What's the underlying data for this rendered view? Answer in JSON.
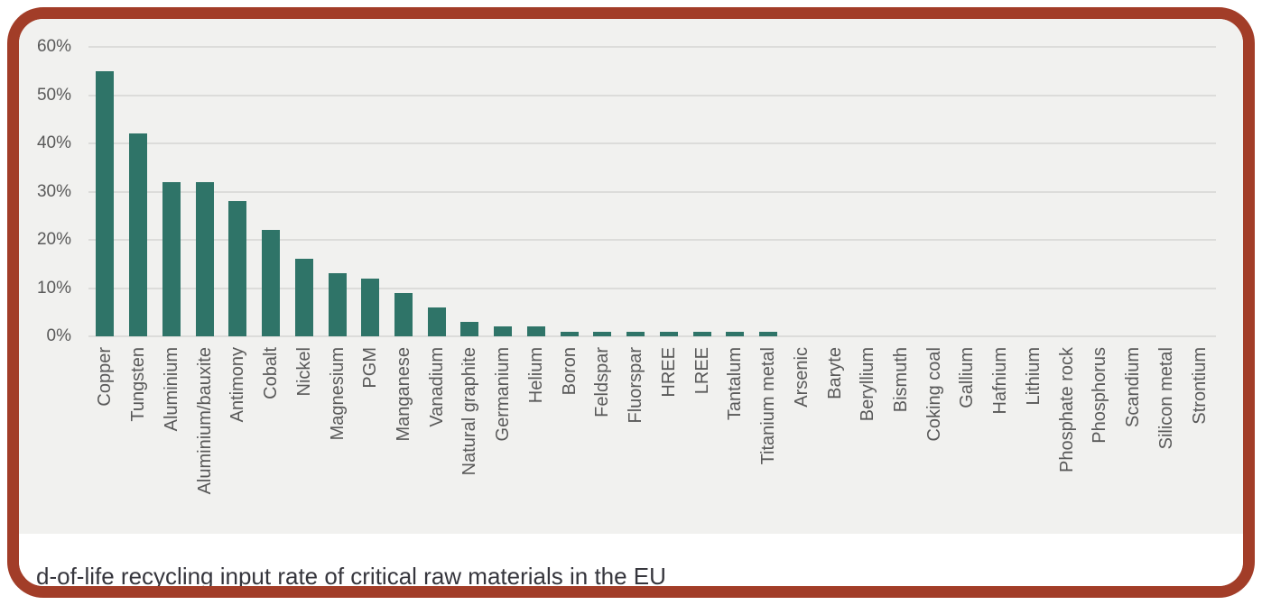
{
  "figure": {
    "caption": "d-of-life recycling input rate of critical raw materials in the EU"
  },
  "colors": {
    "frame-border": "#A23D28",
    "panel-bg": "#F1F1EF",
    "page-bg": "#FFFFFF",
    "bar": "#2F7468",
    "gridline": "#DCDCDA",
    "axis-text": "#595959",
    "caption-text": "#36363D"
  },
  "chart_data": {
    "type": "bar",
    "title": "",
    "xlabel": "",
    "ylabel": "",
    "value_unit": "percent",
    "ylim": [
      0,
      60
    ],
    "grid": true,
    "legend": false,
    "bar_color": "#2F7468",
    "y_ticks": [
      "0%",
      "10%",
      "20%",
      "30%",
      "40%",
      "50%",
      "60%"
    ],
    "categories": [
      "Copper",
      "Tungsten",
      "Aluminium",
      "Aluminium/bauxite",
      "Antimony",
      "Cobalt",
      "Nickel",
      "Magnesium",
      "PGM",
      "Manganese",
      "Vanadium",
      "Natural graphite",
      "Germanium",
      "Helium",
      "Boron",
      "Feldspar",
      "Fluorspar",
      "HREE",
      "LREE",
      "Tantalum",
      "Titanium metal",
      "Arsenic",
      "Baryte",
      "Beryllium",
      "Bismuth",
      "Coking coal",
      "Gallium",
      "Hafnium",
      "Lithium",
      "Phosphate rock",
      "Phosphorus",
      "Scandium",
      "Silicon metal",
      "Strontium"
    ],
    "values": [
      55,
      42,
      32,
      32,
      28,
      22,
      16,
      13,
      12,
      9,
      6,
      3,
      2,
      2,
      1,
      1,
      1,
      1,
      1,
      1,
      1,
      0,
      0,
      0,
      0,
      0,
      0,
      0,
      0,
      0,
      0,
      0,
      0,
      0
    ]
  }
}
